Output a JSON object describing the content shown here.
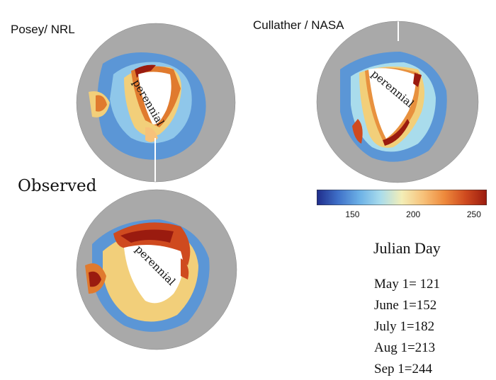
{
  "maps": [
    {
      "title": "Posey/ NRL",
      "region_label": "perennial"
    },
    {
      "title": "Cullather / NASA",
      "region_label": "perennial"
    },
    {
      "title": "Observed",
      "region_label": "perennial"
    }
  ],
  "colorbar": {
    "min": 120,
    "max": 260,
    "ticks": [
      "150",
      "200",
      "250"
    ],
    "tick_values": [
      150,
      200,
      250
    ],
    "colors": [
      "#1f2c8a",
      "#3f70c8",
      "#6bb0e6",
      "#a9dcec",
      "#f3eeb7",
      "#f7c27a",
      "#ee8a3c",
      "#cf4a1f",
      "#9a1b0f"
    ]
  },
  "legend": {
    "title": "Julian Day",
    "entries": [
      "May 1= 121",
      "June 1=152",
      "July 1=182",
      "Aug 1=213",
      "Sep 1=244"
    ]
  },
  "colors": {
    "land": "#a9a9a9",
    "ocean": "#5b96d6",
    "ice": "#ffffff"
  }
}
